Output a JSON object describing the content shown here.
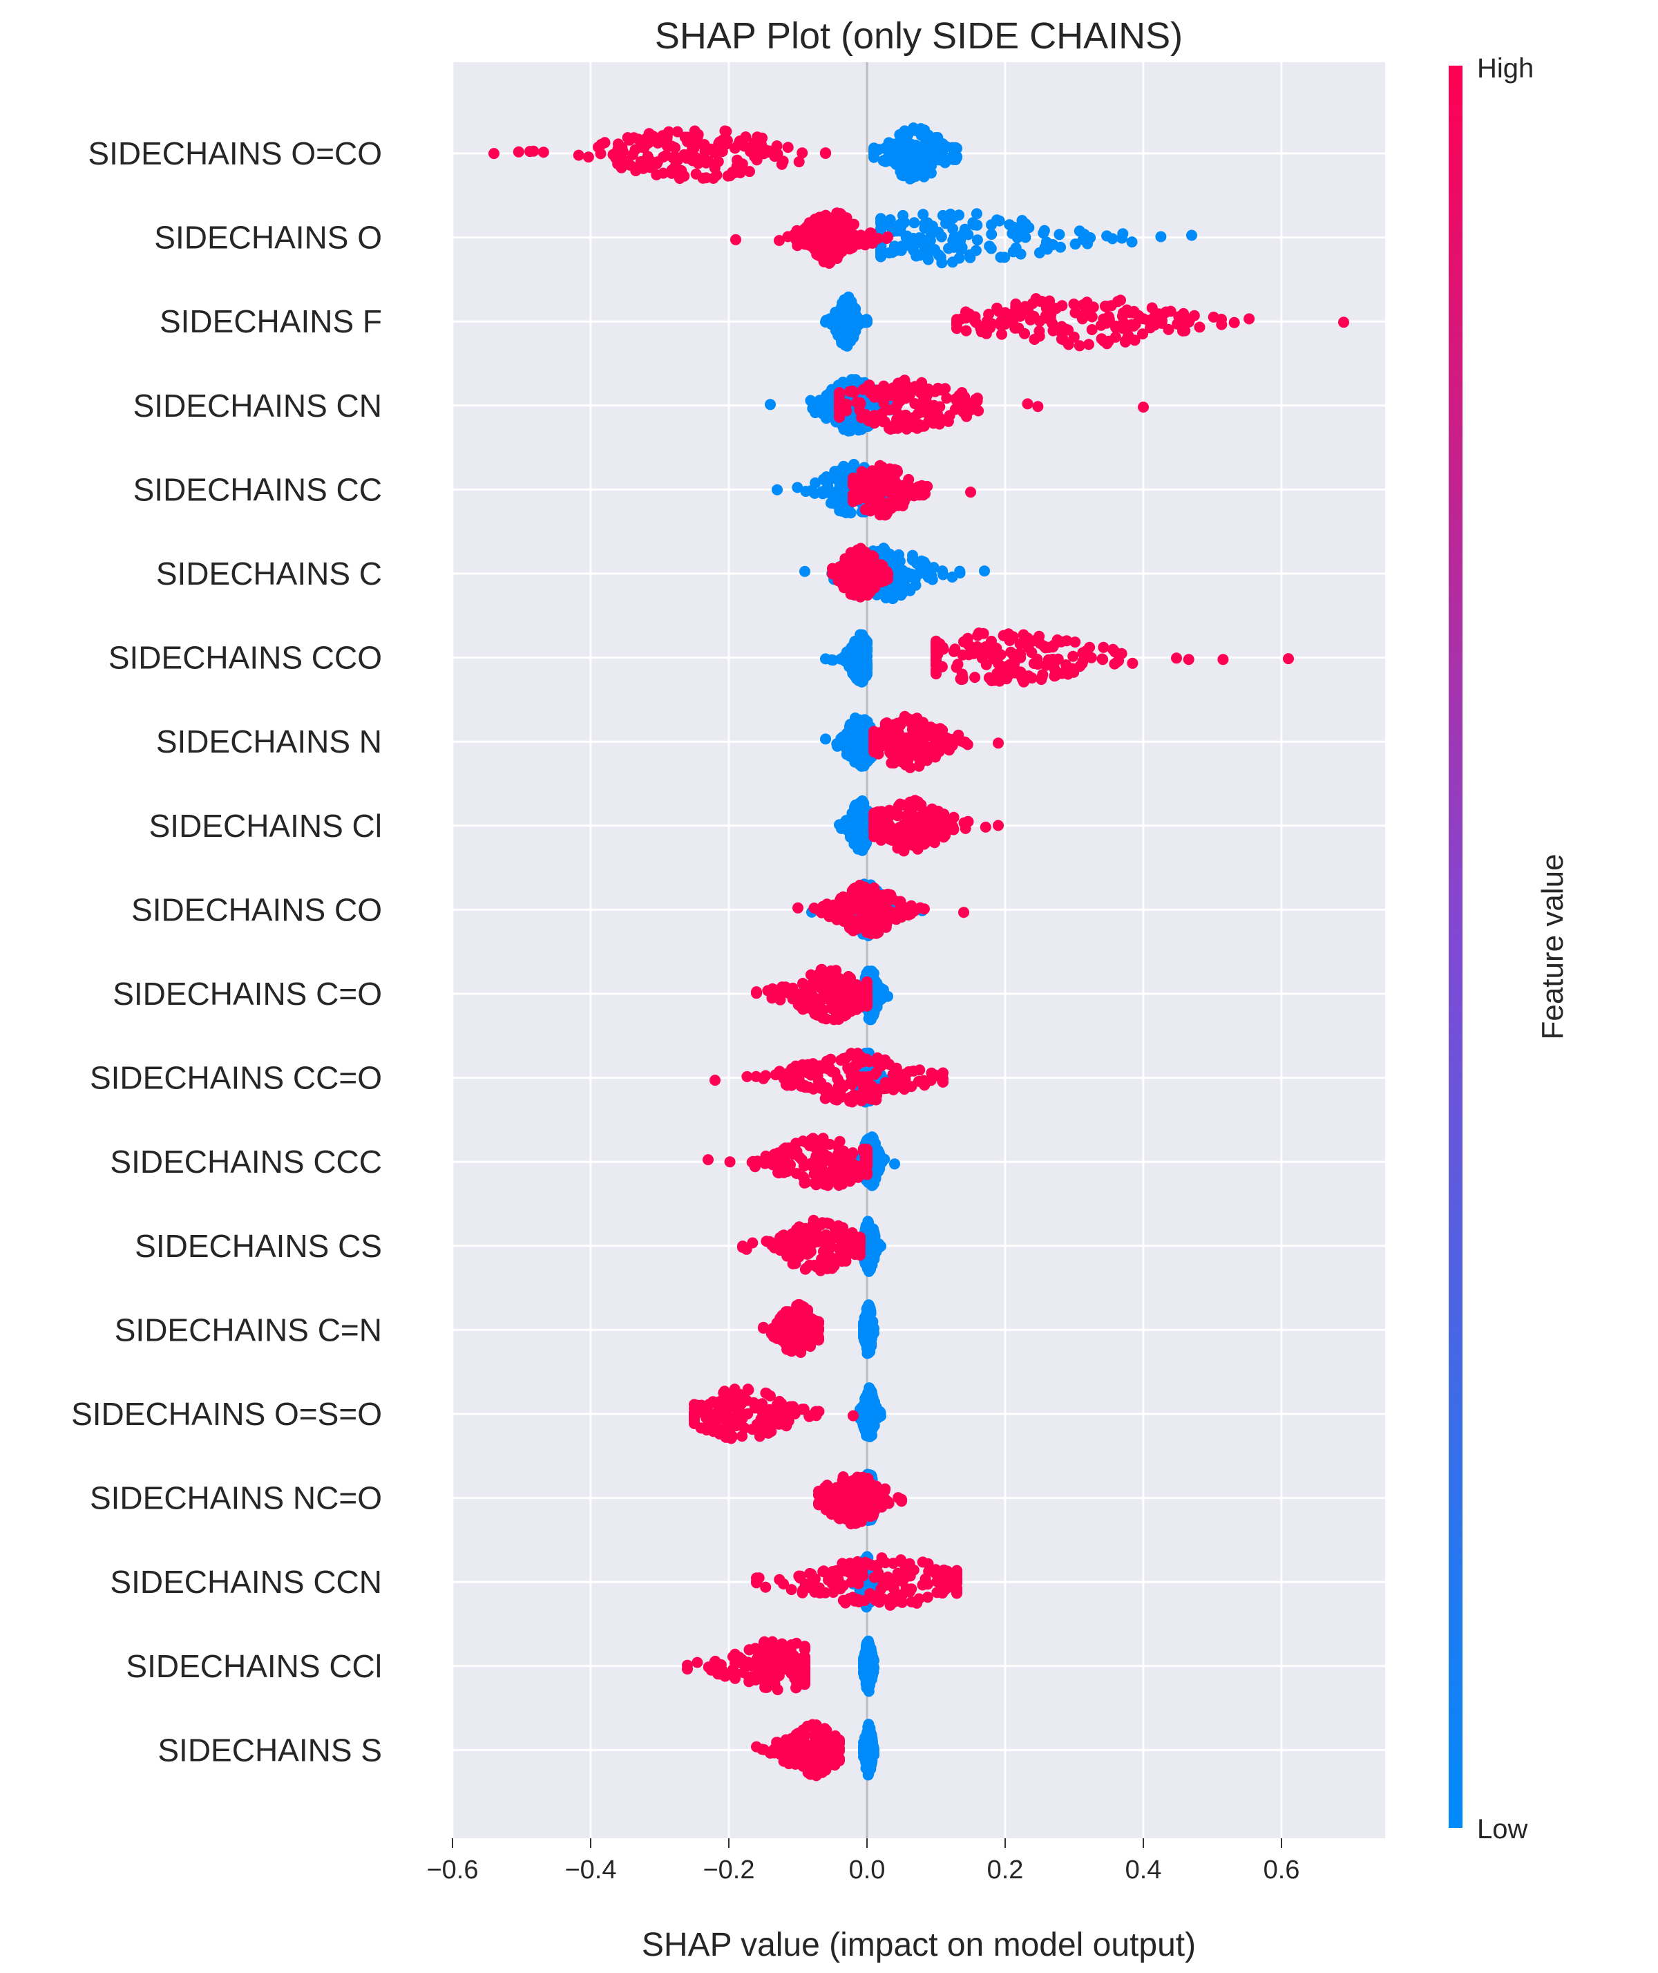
{
  "chart_data": {
    "type": "scatter",
    "subtype": "shap-beeswarm",
    "title": "SHAP Plot (only SIDE CHAINS)",
    "xlabel": "SHAP value (impact on model output)",
    "ylabel": "",
    "xlim": [
      -0.6,
      0.75
    ],
    "x_ticks": [
      -0.6,
      -0.4,
      -0.2,
      0.0,
      0.2,
      0.4,
      0.6
    ],
    "x_tick_labels": [
      "−0.6",
      "−0.4",
      "−0.2",
      "0.0",
      "0.2",
      "0.4",
      "0.6"
    ],
    "grid": true,
    "background": "#eaeaf2",
    "colorbar": {
      "label": "Feature value",
      "high_label": "High",
      "low_label": "Low",
      "high_color": "#ff0052",
      "mid_color": "#7f49d4",
      "low_color": "#008bfb"
    },
    "features": [
      {
        "name": "SIDECHAINS O=CO",
        "low": {
          "min": 0.01,
          "max": 0.13,
          "center": 0.07,
          "width": 0.03
        },
        "high": {
          "min": -0.54,
          "max": -0.06,
          "center": -0.25,
          "width": 0.09
        }
      },
      {
        "name": "SIDECHAINS O",
        "low": {
          "min": 0.02,
          "max": 0.47,
          "center": 0.12,
          "width": 0.12
        },
        "high": {
          "min": -0.19,
          "max": 0.03,
          "center": -0.05,
          "width": 0.03
        }
      },
      {
        "name": "SIDECHAINS F",
        "low": {
          "min": -0.06,
          "max": 0.0,
          "center": -0.03,
          "width": 0.01
        },
        "high": {
          "min": 0.13,
          "max": 0.69,
          "center": 0.3,
          "width": 0.1
        }
      },
      {
        "name": "SIDECHAINS CN",
        "low": {
          "min": -0.14,
          "max": 0.04,
          "center": -0.02,
          "width": 0.03
        },
        "high": {
          "min": -0.04,
          "max": 0.4,
          "center": 0.05,
          "width": 0.07
        }
      },
      {
        "name": "SIDECHAINS CC",
        "low": {
          "min": -0.13,
          "max": 0.06,
          "center": -0.02,
          "width": 0.03
        },
        "high": {
          "min": -0.02,
          "max": 0.15,
          "center": 0.02,
          "width": 0.03
        }
      },
      {
        "name": "SIDECHAINS C",
        "low": {
          "min": -0.09,
          "max": 0.17,
          "center": 0.03,
          "width": 0.04
        },
        "high": {
          "min": -0.05,
          "max": 0.03,
          "center": -0.01,
          "width": 0.02
        }
      },
      {
        "name": "SIDECHAINS CCO",
        "low": {
          "min": -0.06,
          "max": 0.0,
          "center": -0.01,
          "width": 0.01
        },
        "high": {
          "min": 0.1,
          "max": 0.61,
          "center": 0.2,
          "width": 0.1
        }
      },
      {
        "name": "SIDECHAINS N",
        "low": {
          "min": -0.06,
          "max": 0.02,
          "center": -0.01,
          "width": 0.015
        },
        "high": {
          "min": 0.01,
          "max": 0.19,
          "center": 0.06,
          "width": 0.04
        }
      },
      {
        "name": "SIDECHAINS Cl",
        "low": {
          "min": -0.04,
          "max": 0.02,
          "center": -0.01,
          "width": 0.01
        },
        "high": {
          "min": 0.01,
          "max": 0.19,
          "center": 0.06,
          "width": 0.04
        }
      },
      {
        "name": "SIDECHAINS CO",
        "low": {
          "min": -0.08,
          "max": 0.08,
          "center": 0.0,
          "width": 0.02
        },
        "high": {
          "min": -0.1,
          "max": 0.14,
          "center": 0.0,
          "width": 0.03
        }
      },
      {
        "name": "SIDECHAINS C=O",
        "low": {
          "min": -0.01,
          "max": 0.03,
          "center": 0.005,
          "width": 0.008
        },
        "high": {
          "min": -0.16,
          "max": 0.0,
          "center": -0.05,
          "width": 0.04
        }
      },
      {
        "name": "SIDECHAINS CC=O",
        "low": {
          "min": -0.02,
          "max": 0.03,
          "center": 0.0,
          "width": 0.008
        },
        "high": {
          "min": -0.22,
          "max": 0.11,
          "center": -0.02,
          "width": 0.06
        }
      },
      {
        "name": "SIDECHAINS CCC",
        "low": {
          "min": -0.01,
          "max": 0.04,
          "center": 0.005,
          "width": 0.008
        },
        "high": {
          "min": -0.23,
          "max": 0.0,
          "center": -0.06,
          "width": 0.05
        }
      },
      {
        "name": "SIDECHAINS CS",
        "low": {
          "min": -0.01,
          "max": 0.02,
          "center": 0.003,
          "width": 0.006
        },
        "high": {
          "min": -0.18,
          "max": -0.01,
          "center": -0.07,
          "width": 0.04
        }
      },
      {
        "name": "SIDECHAINS C=N",
        "low": {
          "min": -0.005,
          "max": 0.01,
          "center": 0.002,
          "width": 0.004
        },
        "high": {
          "min": -0.15,
          "max": -0.07,
          "center": -0.1,
          "width": 0.02
        }
      },
      {
        "name": "SIDECHAINS O=S=O",
        "low": {
          "min": -0.01,
          "max": 0.02,
          "center": 0.003,
          "width": 0.006
        },
        "high": {
          "min": -0.25,
          "max": -0.02,
          "center": -0.18,
          "width": 0.05
        }
      },
      {
        "name": "SIDECHAINS NC=O",
        "low": {
          "min": -0.01,
          "max": 0.02,
          "center": 0.003,
          "width": 0.006
        },
        "high": {
          "min": -0.07,
          "max": 0.05,
          "center": -0.02,
          "width": 0.03
        }
      },
      {
        "name": "SIDECHAINS CCN",
        "low": {
          "min": -0.02,
          "max": 0.02,
          "center": 0.0,
          "width": 0.006
        },
        "high": {
          "min": -0.16,
          "max": 0.13,
          "center": 0.02,
          "width": 0.08
        }
      },
      {
        "name": "SIDECHAINS CCl",
        "low": {
          "min": -0.005,
          "max": 0.01,
          "center": 0.002,
          "width": 0.004
        },
        "high": {
          "min": -0.26,
          "max": -0.09,
          "center": -0.13,
          "width": 0.05
        }
      },
      {
        "name": "SIDECHAINS S",
        "low": {
          "min": -0.005,
          "max": 0.01,
          "center": 0.002,
          "width": 0.004
        },
        "high": {
          "min": -0.16,
          "max": -0.04,
          "center": -0.08,
          "width": 0.03
        }
      }
    ]
  }
}
